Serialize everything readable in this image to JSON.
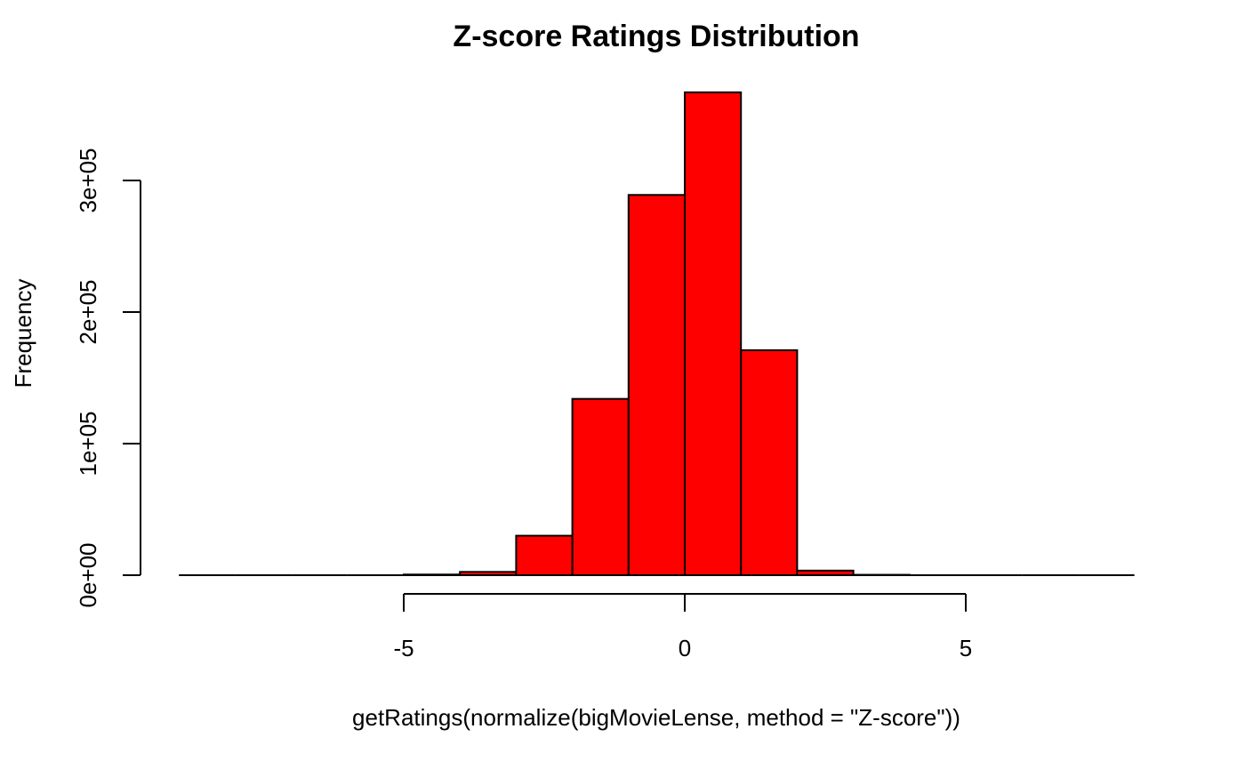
{
  "chart_data": {
    "type": "bar",
    "title": "Z-score Ratings Distribution",
    "xlabel": "getRatings(normalize(bigMovieLense, method = \"Z-score\"))",
    "ylabel": "Frequency",
    "bar_color": "#fe0000",
    "outline_color": "#000000",
    "xlim": [
      -9,
      8
    ],
    "ylim": [
      0,
      370000
    ],
    "x_ticks": [
      -5,
      0,
      5
    ],
    "x_tick_labels": [
      "-5",
      "0",
      "5"
    ],
    "y_ticks": [
      0,
      100000,
      200000,
      300000
    ],
    "y_tick_labels": [
      "0e+00",
      "1e+05",
      "2e+05",
      "3e+05"
    ],
    "bins": [
      {
        "start": -9,
        "end": -8,
        "count": 0
      },
      {
        "start": -8,
        "end": -7,
        "count": 0
      },
      {
        "start": -7,
        "end": -6,
        "count": 0
      },
      {
        "start": -6,
        "end": -5,
        "count": 0
      },
      {
        "start": -5,
        "end": -4,
        "count": 500
      },
      {
        "start": -4,
        "end": -3,
        "count": 2500
      },
      {
        "start": -3,
        "end": -2,
        "count": 30000
      },
      {
        "start": -2,
        "end": -1,
        "count": 134000
      },
      {
        "start": -1,
        "end": 0,
        "count": 289000
      },
      {
        "start": 0,
        "end": 1,
        "count": 367000
      },
      {
        "start": 1,
        "end": 2,
        "count": 171000
      },
      {
        "start": 2,
        "end": 3,
        "count": 3500
      },
      {
        "start": 3,
        "end": 4,
        "count": 300
      },
      {
        "start": 4,
        "end": 5,
        "count": 0
      },
      {
        "start": 5,
        "end": 6,
        "count": 0
      },
      {
        "start": 6,
        "end": 7,
        "count": 0
      },
      {
        "start": 7,
        "end": 8,
        "count": 0
      }
    ]
  }
}
